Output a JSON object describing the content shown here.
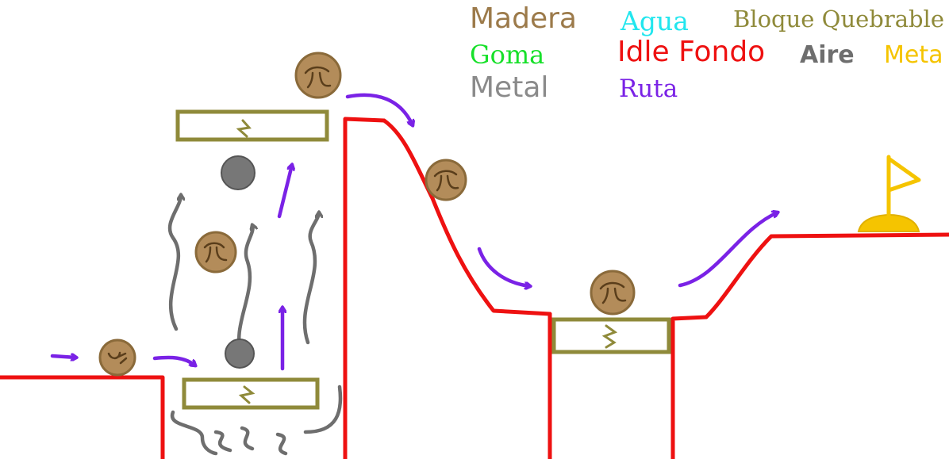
{
  "legend": {
    "madera": "Madera",
    "agua": "Agua",
    "bloque_quebrable": "Bloque Quebrable",
    "goma": "Goma",
    "idle_fondo": "Idle Fondo",
    "aire": "Aire",
    "meta": "Meta",
    "metal": "Metal",
    "ruta": "Ruta"
  },
  "colors": {
    "madera": "#9c7a4a",
    "agua": "#22e6ee",
    "bloque_quebrable": "#8f8a3a",
    "goma": "#17e02a",
    "idle_fondo": "#ee1111",
    "aire": "#6e6e6e",
    "meta": "#f5c400",
    "metal": "#8a8a8a",
    "ruta": "#7a22e6"
  },
  "icons": {
    "wood_ball": "wood-ball-icon",
    "metal_ball": "metal-ball-icon",
    "breakable_block": "breakable-block-icon",
    "goal_flag": "goal-flag-icon",
    "path_arrow": "path-arrow-icon",
    "air_current": "air-current-icon"
  }
}
